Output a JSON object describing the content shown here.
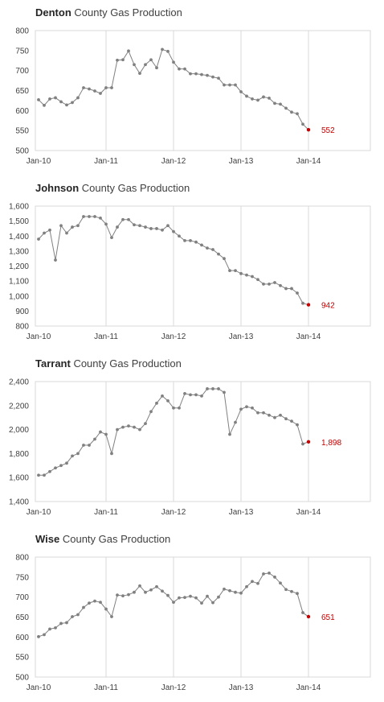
{
  "colors": {
    "series": "#808080",
    "highlight": "#c00000",
    "grid": "#d9d9d9",
    "border": "#d9d9d9"
  },
  "chart_data": [
    {
      "type": "line",
      "title_bold": "Denton",
      "title_rest": " County Gas Production",
      "yticks": [
        "800",
        "750",
        "700",
        "650",
        "600",
        "550",
        "500"
      ],
      "ylim": [
        500,
        800
      ],
      "xticks": [
        "Jan-10",
        "Jan-11",
        "Jan-12",
        "Jan-13",
        "Jan-14"
      ],
      "x_start": "Jan-10",
      "last_label": "552",
      "grid": "vertical at each January",
      "values": [
        627,
        613,
        629,
        632,
        622,
        614,
        620,
        632,
        657,
        654,
        649,
        643,
        657,
        657,
        726,
        727,
        749,
        715,
        693,
        715,
        727,
        707,
        753,
        748,
        721,
        704,
        704,
        692,
        692,
        690,
        688,
        684,
        681,
        664,
        664,
        664,
        647,
        636,
        629,
        626,
        634,
        631,
        618,
        616,
        606,
        596,
        592,
        566,
        552
      ]
    },
    {
      "type": "line",
      "title_bold": "Johnson",
      "title_rest": " County Gas Production",
      "yticks": [
        "1,600",
        "1,500",
        "1,400",
        "1,300",
        "1,200",
        "1,100",
        "1,000",
        "900",
        "800"
      ],
      "ylim": [
        800,
        1600
      ],
      "xticks": [
        "Jan-10",
        "Jan-11",
        "Jan-12",
        "Jan-13",
        "Jan-14"
      ],
      "x_start": "Jan-10",
      "last_label": "942",
      "grid": "vertical at each January",
      "values": [
        1380,
        1420,
        1440,
        1240,
        1470,
        1420,
        1460,
        1470,
        1530,
        1530,
        1530,
        1520,
        1480,
        1390,
        1460,
        1510,
        1510,
        1475,
        1470,
        1460,
        1450,
        1450,
        1440,
        1470,
        1430,
        1400,
        1370,
        1370,
        1360,
        1340,
        1320,
        1310,
        1280,
        1250,
        1170,
        1170,
        1150,
        1140,
        1130,
        1110,
        1080,
        1080,
        1090,
        1070,
        1050,
        1050,
        1020,
        952,
        942
      ]
    },
    {
      "type": "line",
      "title_bold": "Tarrant",
      "title_rest": " County Gas Production",
      "yticks": [
        "2,400",
        "2,200",
        "2,000",
        "1,800",
        "1,600",
        "1,400"
      ],
      "ylim": [
        1400,
        2400
      ],
      "xticks": [
        "Jan-10",
        "Jan-11",
        "Jan-12",
        "Jan-13",
        "Jan-14"
      ],
      "x_start": "Jan-10",
      "last_label": "1,898",
      "grid": "vertical at each January",
      "values": [
        1620,
        1620,
        1650,
        1680,
        1700,
        1720,
        1780,
        1800,
        1870,
        1870,
        1920,
        1980,
        1960,
        1800,
        2000,
        2020,
        2030,
        2020,
        2000,
        2050,
        2150,
        2220,
        2280,
        2240,
        2180,
        2180,
        2300,
        2290,
        2290,
        2280,
        2340,
        2340,
        2340,
        2310,
        1960,
        2060,
        2170,
        2190,
        2180,
        2140,
        2140,
        2120,
        2100,
        2120,
        2090,
        2070,
        2040,
        1880,
        1898
      ]
    },
    {
      "type": "line",
      "title_bold": "Wise",
      "title_rest": " County Gas Production",
      "yticks": [
        "800",
        "750",
        "700",
        "650",
        "600",
        "550",
        "500"
      ],
      "ylim": [
        500,
        800
      ],
      "xticks": [
        "Jan-10",
        "Jan-11",
        "Jan-12",
        "Jan-13",
        "Jan-14"
      ],
      "x_start": "Jan-10",
      "last_label": "651",
      "grid": "vertical at each January",
      "values": [
        601,
        606,
        620,
        623,
        634,
        636,
        651,
        656,
        674,
        685,
        690,
        687,
        670,
        651,
        705,
        703,
        706,
        712,
        728,
        712,
        718,
        726,
        715,
        704,
        687,
        698,
        699,
        702,
        698,
        685,
        702,
        686,
        700,
        720,
        716,
        712,
        710,
        726,
        739,
        734,
        758,
        760,
        750,
        735,
        719,
        714,
        709,
        661,
        651
      ]
    }
  ]
}
